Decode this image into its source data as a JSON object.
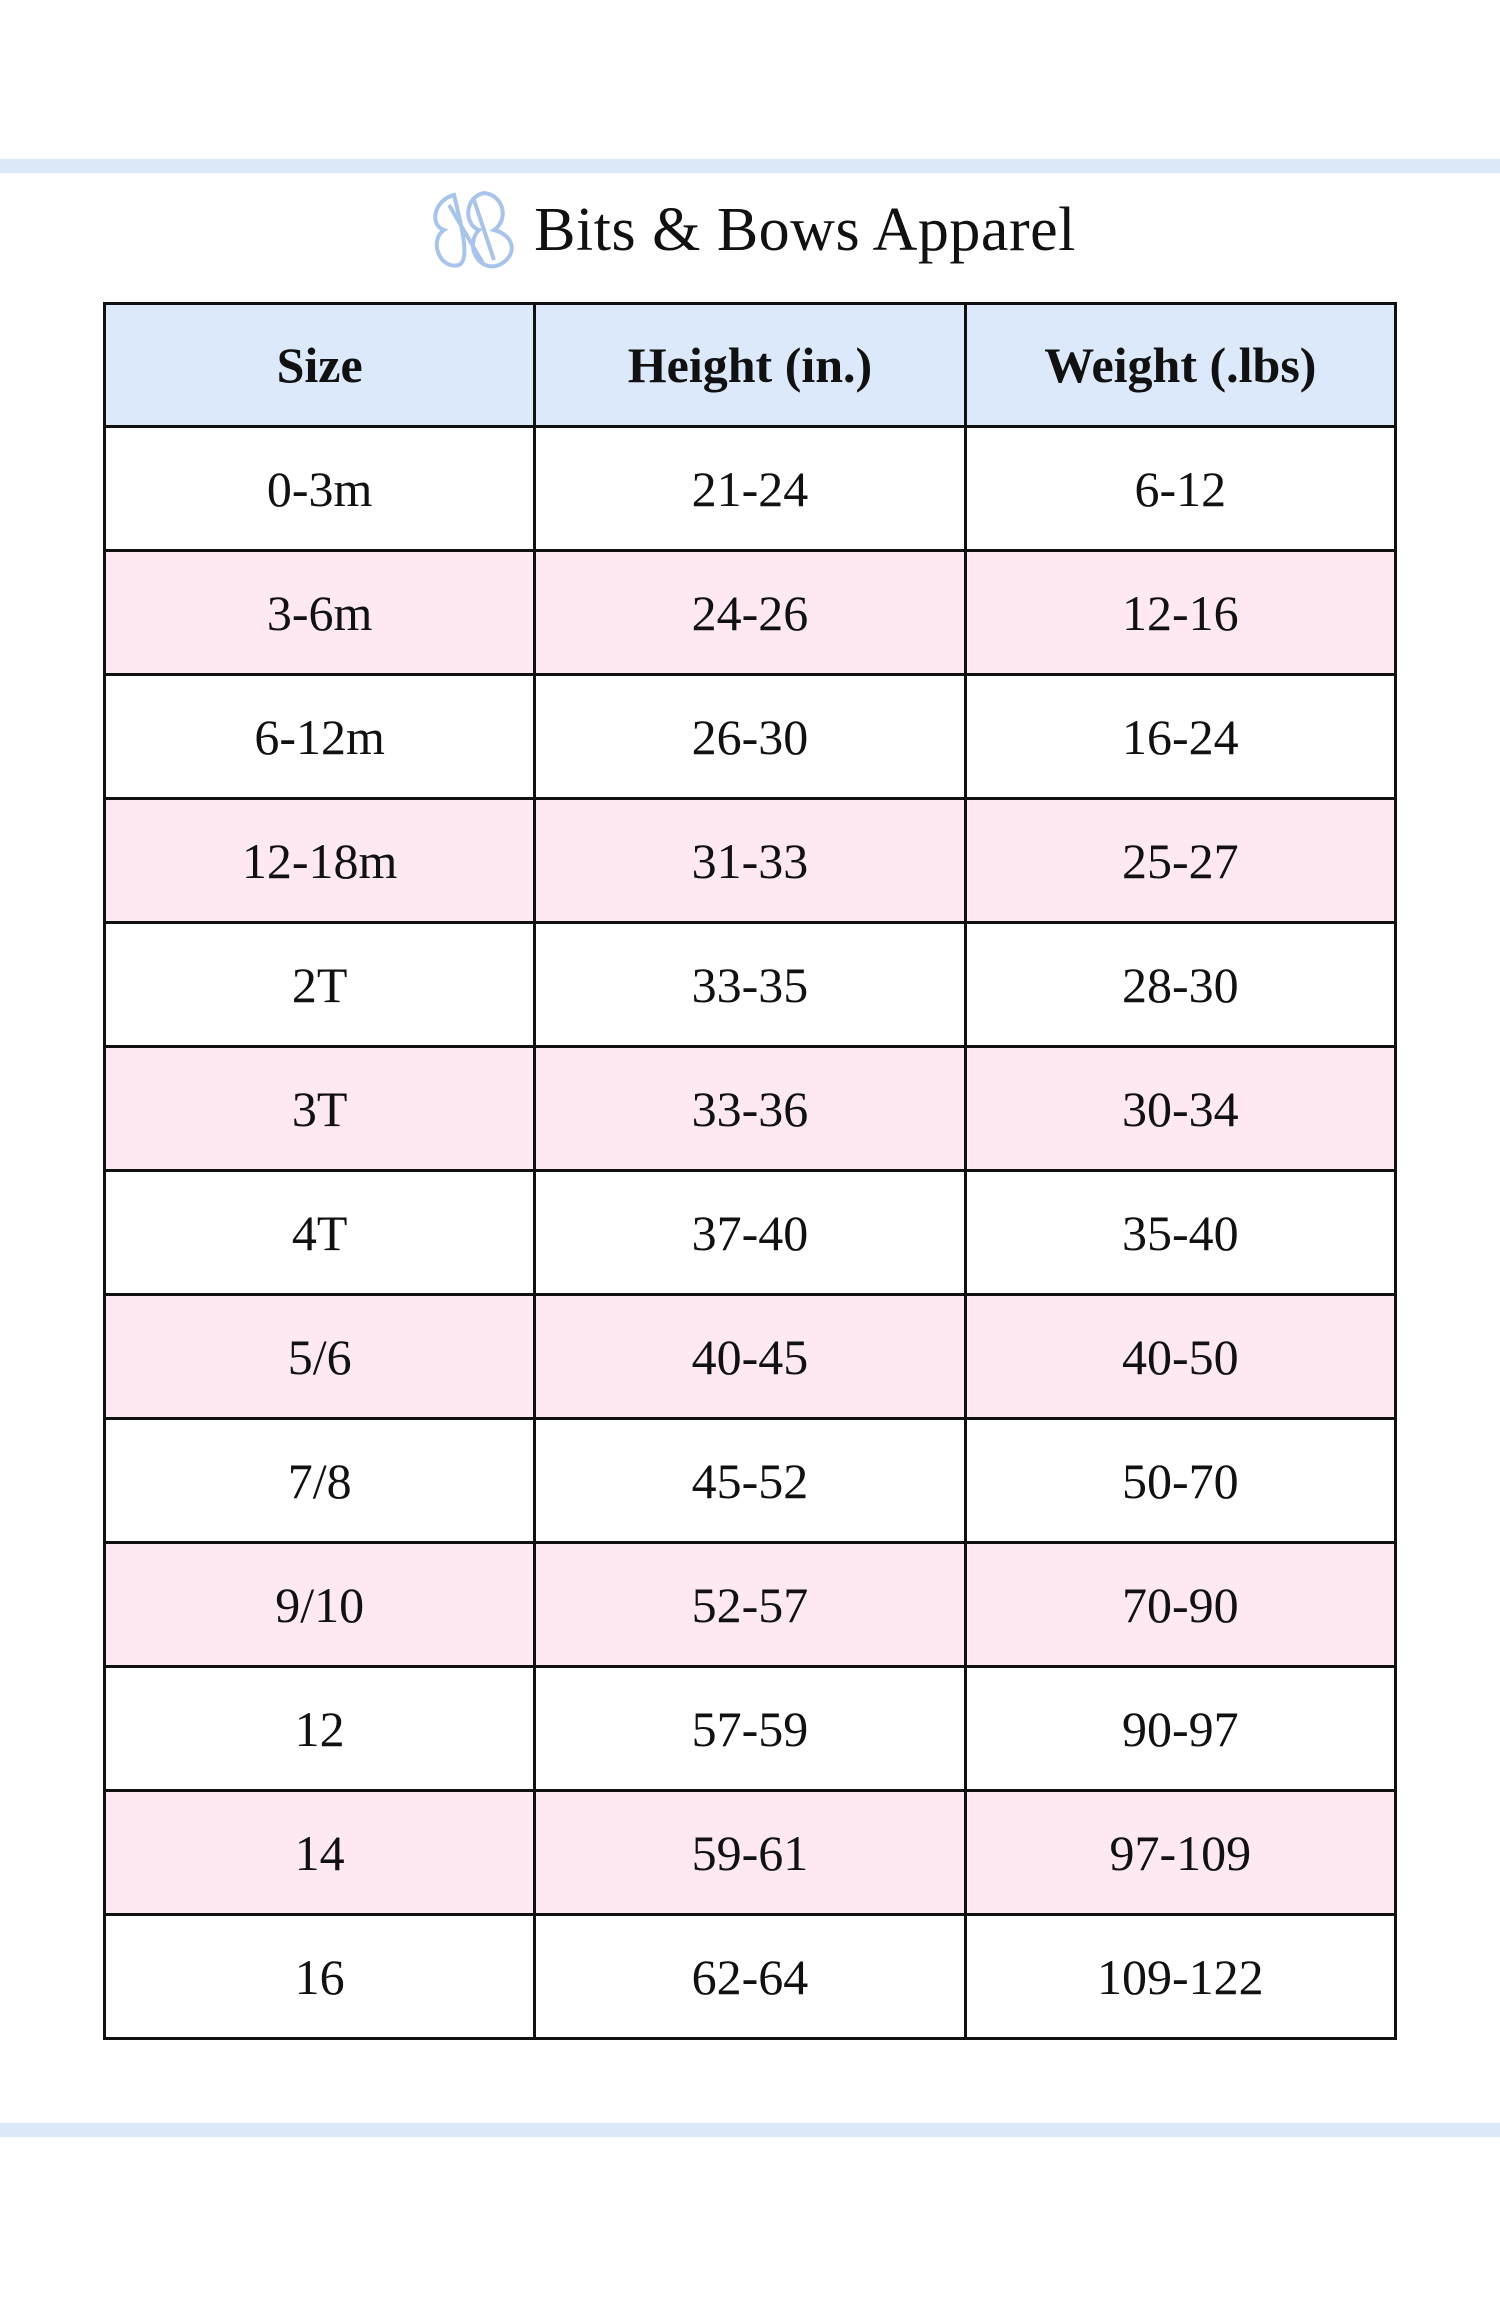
{
  "title": "Bits & Bows Apparel",
  "logo": {
    "text": "BB",
    "color": "#a9c4ea"
  },
  "colors": {
    "header_bg": "#dce9fb",
    "alt_row_bg": "#fde8f4",
    "band": "#dce8f8"
  },
  "table": {
    "headers": [
      "Size",
      "Height (in.)",
      "Weight (.lbs)"
    ],
    "rows": [
      [
        "0-3m",
        "21-24",
        "6-12"
      ],
      [
        "3-6m",
        "24-26",
        "12-16"
      ],
      [
        "6-12m",
        "26-30",
        "16-24"
      ],
      [
        "12-18m",
        "31-33",
        "25-27"
      ],
      [
        "2T",
        "33-35",
        "28-30"
      ],
      [
        "3T",
        "33-36",
        "30-34"
      ],
      [
        "4T",
        "37-40",
        "35-40"
      ],
      [
        "5/6",
        "40-45",
        "40-50"
      ],
      [
        "7/8",
        "45-52",
        "50-70"
      ],
      [
        "9/10",
        "52-57",
        "70-90"
      ],
      [
        "12",
        "57-59",
        "90-97"
      ],
      [
        "14",
        "59-61",
        "97-109"
      ],
      [
        "16",
        "62-64",
        "109-122"
      ]
    ]
  }
}
